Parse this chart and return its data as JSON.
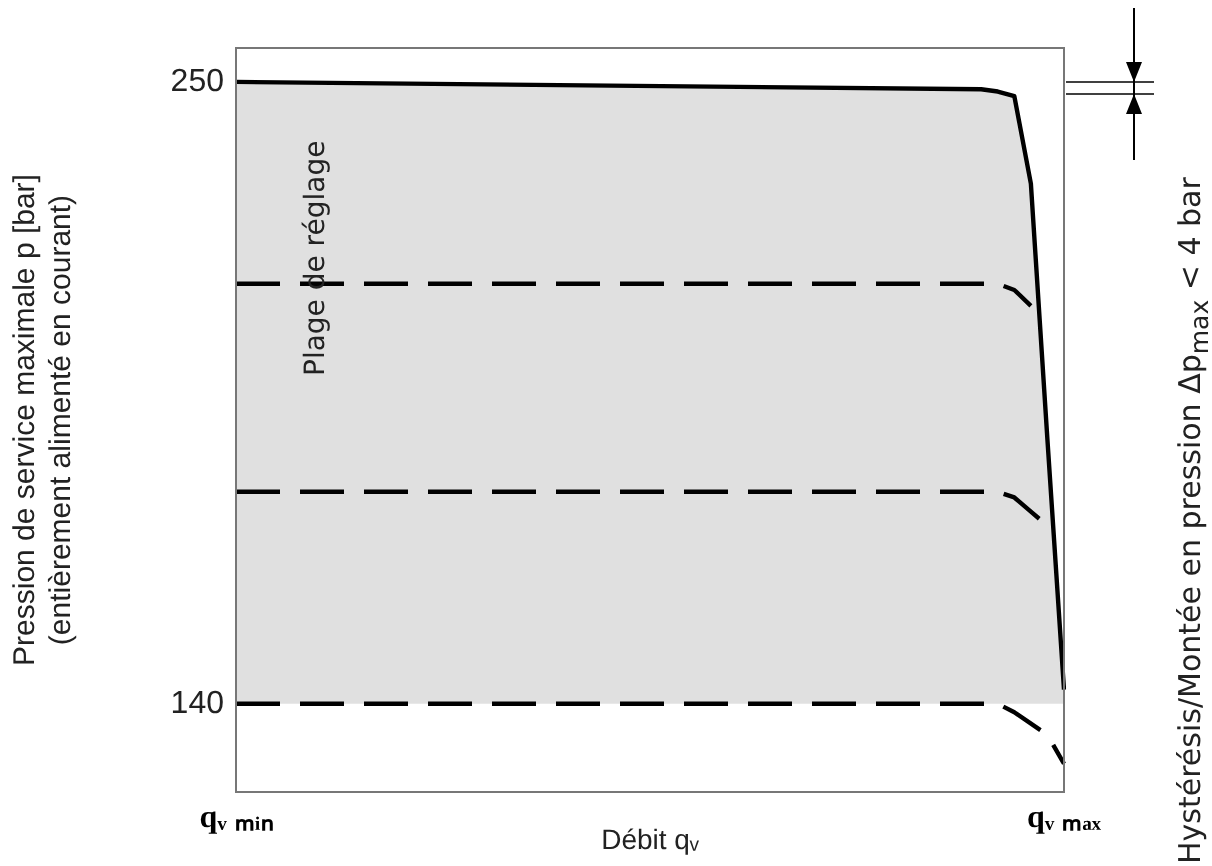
{
  "chart_data": {
    "type": "line",
    "ylabel": "Pression de service maximale p [bar]\n(entièrement alimenté en courant)",
    "xlabel": "Débit qᵥ",
    "annotations": [
      "Hystérésis/Montée en pression Δp$_{max}$ < 4 bar"
    ],
    "bands": [
      {
        "axis": "y",
        "from": 140,
        "to": 250,
        "label": "Plage de réglage",
        "color": "#e0e0e0"
      }
    ],
    "categories": [
      "qᵥ ₘᵢₙ",
      null,
      null,
      null,
      null,
      null,
      null,
      null,
      null,
      null,
      null,
      null,
      null,
      null,
      null,
      null,
      null,
      null,
      null,
      null,
      null,
      null,
      null,
      null,
      null,
      null,
      null,
      null,
      null,
      null,
      null,
      null,
      null,
      null,
      null,
      null,
      null,
      null,
      null,
      null,
      null,
      null,
      null,
      null,
      null,
      null,
      null,
      null,
      null,
      null,
      "qᵥ ₘₐₓ"
    ],
    "ylim": [
      124.4,
      256
    ],
    "yticks": [
      140,
      250
    ],
    "grid": false,
    "legend": false,
    "marker": "none",
    "series": [
      {
        "color": "#000000",
        "line_style": "solid",
        "values": [
          250,
          null,
          null,
          null,
          null,
          null,
          null,
          null,
          null,
          null,
          null,
          null,
          null,
          null,
          null,
          null,
          null,
          null,
          null,
          null,
          null,
          null,
          null,
          null,
          null,
          null,
          null,
          null,
          null,
          null,
          null,
          null,
          null,
          null,
          null,
          null,
          null,
          null,
          null,
          null,
          null,
          null,
          null,
          null,
          null,
          248.7,
          248.3,
          247.5,
          232,
          186.7,
          142.5
        ]
      },
      {
        "color": "#000000",
        "line_style": "dashed",
        "values": [
          214.3,
          null,
          null,
          null,
          null,
          null,
          null,
          null,
          null,
          null,
          null,
          null,
          null,
          null,
          null,
          null,
          null,
          null,
          null,
          null,
          null,
          null,
          null,
          null,
          null,
          null,
          null,
          null,
          null,
          null,
          null,
          null,
          null,
          null,
          null,
          null,
          null,
          null,
          null,
          null,
          null,
          null,
          null,
          null,
          null,
          null,
          214.3,
          213.2,
          210.4,
          null,
          null
        ]
      },
      {
        "color": "#000000",
        "line_style": "dashed",
        "values": [
          177.5,
          null,
          null,
          null,
          null,
          null,
          null,
          null,
          null,
          null,
          null,
          null,
          null,
          null,
          null,
          null,
          null,
          null,
          null,
          null,
          null,
          null,
          null,
          null,
          null,
          null,
          null,
          null,
          null,
          null,
          null,
          null,
          null,
          null,
          null,
          null,
          null,
          null,
          null,
          null,
          null,
          null,
          null,
          null,
          null,
          null,
          177.5,
          176.5,
          174,
          171.5,
          null
        ]
      },
      {
        "color": "#000000",
        "line_style": "dashed",
        "values": [
          140,
          null,
          null,
          null,
          null,
          null,
          null,
          null,
          null,
          null,
          null,
          null,
          null,
          null,
          null,
          null,
          null,
          null,
          null,
          null,
          null,
          null,
          null,
          null,
          null,
          null,
          null,
          null,
          null,
          null,
          null,
          null,
          null,
          null,
          null,
          null,
          null,
          null,
          null,
          null,
          null,
          null,
          null,
          null,
          null,
          null,
          140,
          138.5,
          null,
          134.5,
          129.4
        ]
      }
    ]
  }
}
